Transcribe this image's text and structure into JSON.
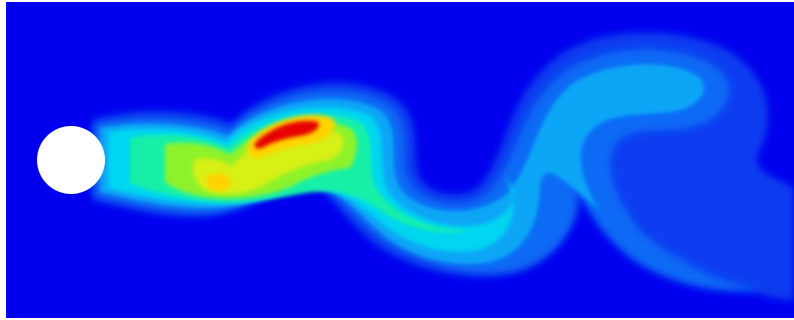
{
  "figure": {
    "kind": "flow-contour",
    "subject": "vortex-shedding-behind-cylinder",
    "colormap": {
      "background": "#0000ee",
      "levels": [
        "#0a3cf0",
        "#0b6bf5",
        "#07a6f7",
        "#00d6f0",
        "#16f0a8",
        "#3af25a",
        "#8ef22a",
        "#d7f012",
        "#ffd400",
        "#ff6a00",
        "#e60000"
      ]
    },
    "obstacle": {
      "shape": "circle",
      "color": "#ffffff"
    }
  }
}
